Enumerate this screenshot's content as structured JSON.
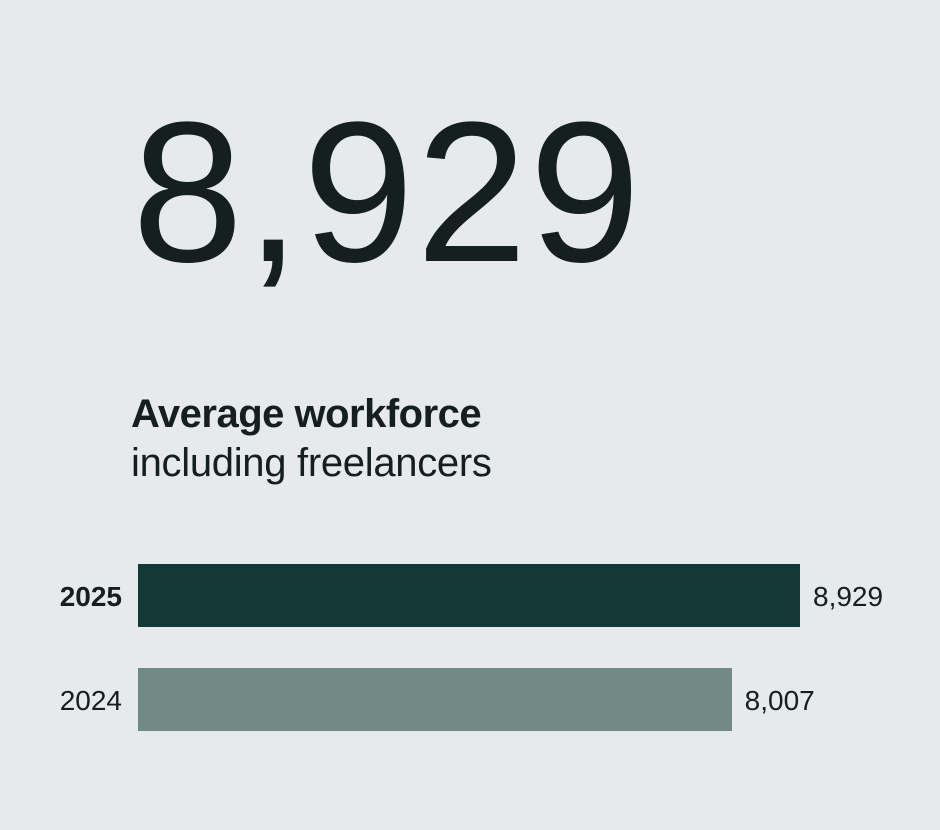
{
  "headline_value": "8,929",
  "title": "Average workforce",
  "subtitle": "including freelancers",
  "chart_data": {
    "type": "bar",
    "orientation": "horizontal",
    "categories": [
      "2025",
      "2024"
    ],
    "values": [
      8929,
      8007
    ],
    "value_labels": [
      "8,929",
      "8,007"
    ],
    "colors": [
      "#143835",
      "#728a86"
    ],
    "highlight": "2025",
    "title": "Average workforce",
    "subtitle": "including freelancers",
    "grid": false
  }
}
